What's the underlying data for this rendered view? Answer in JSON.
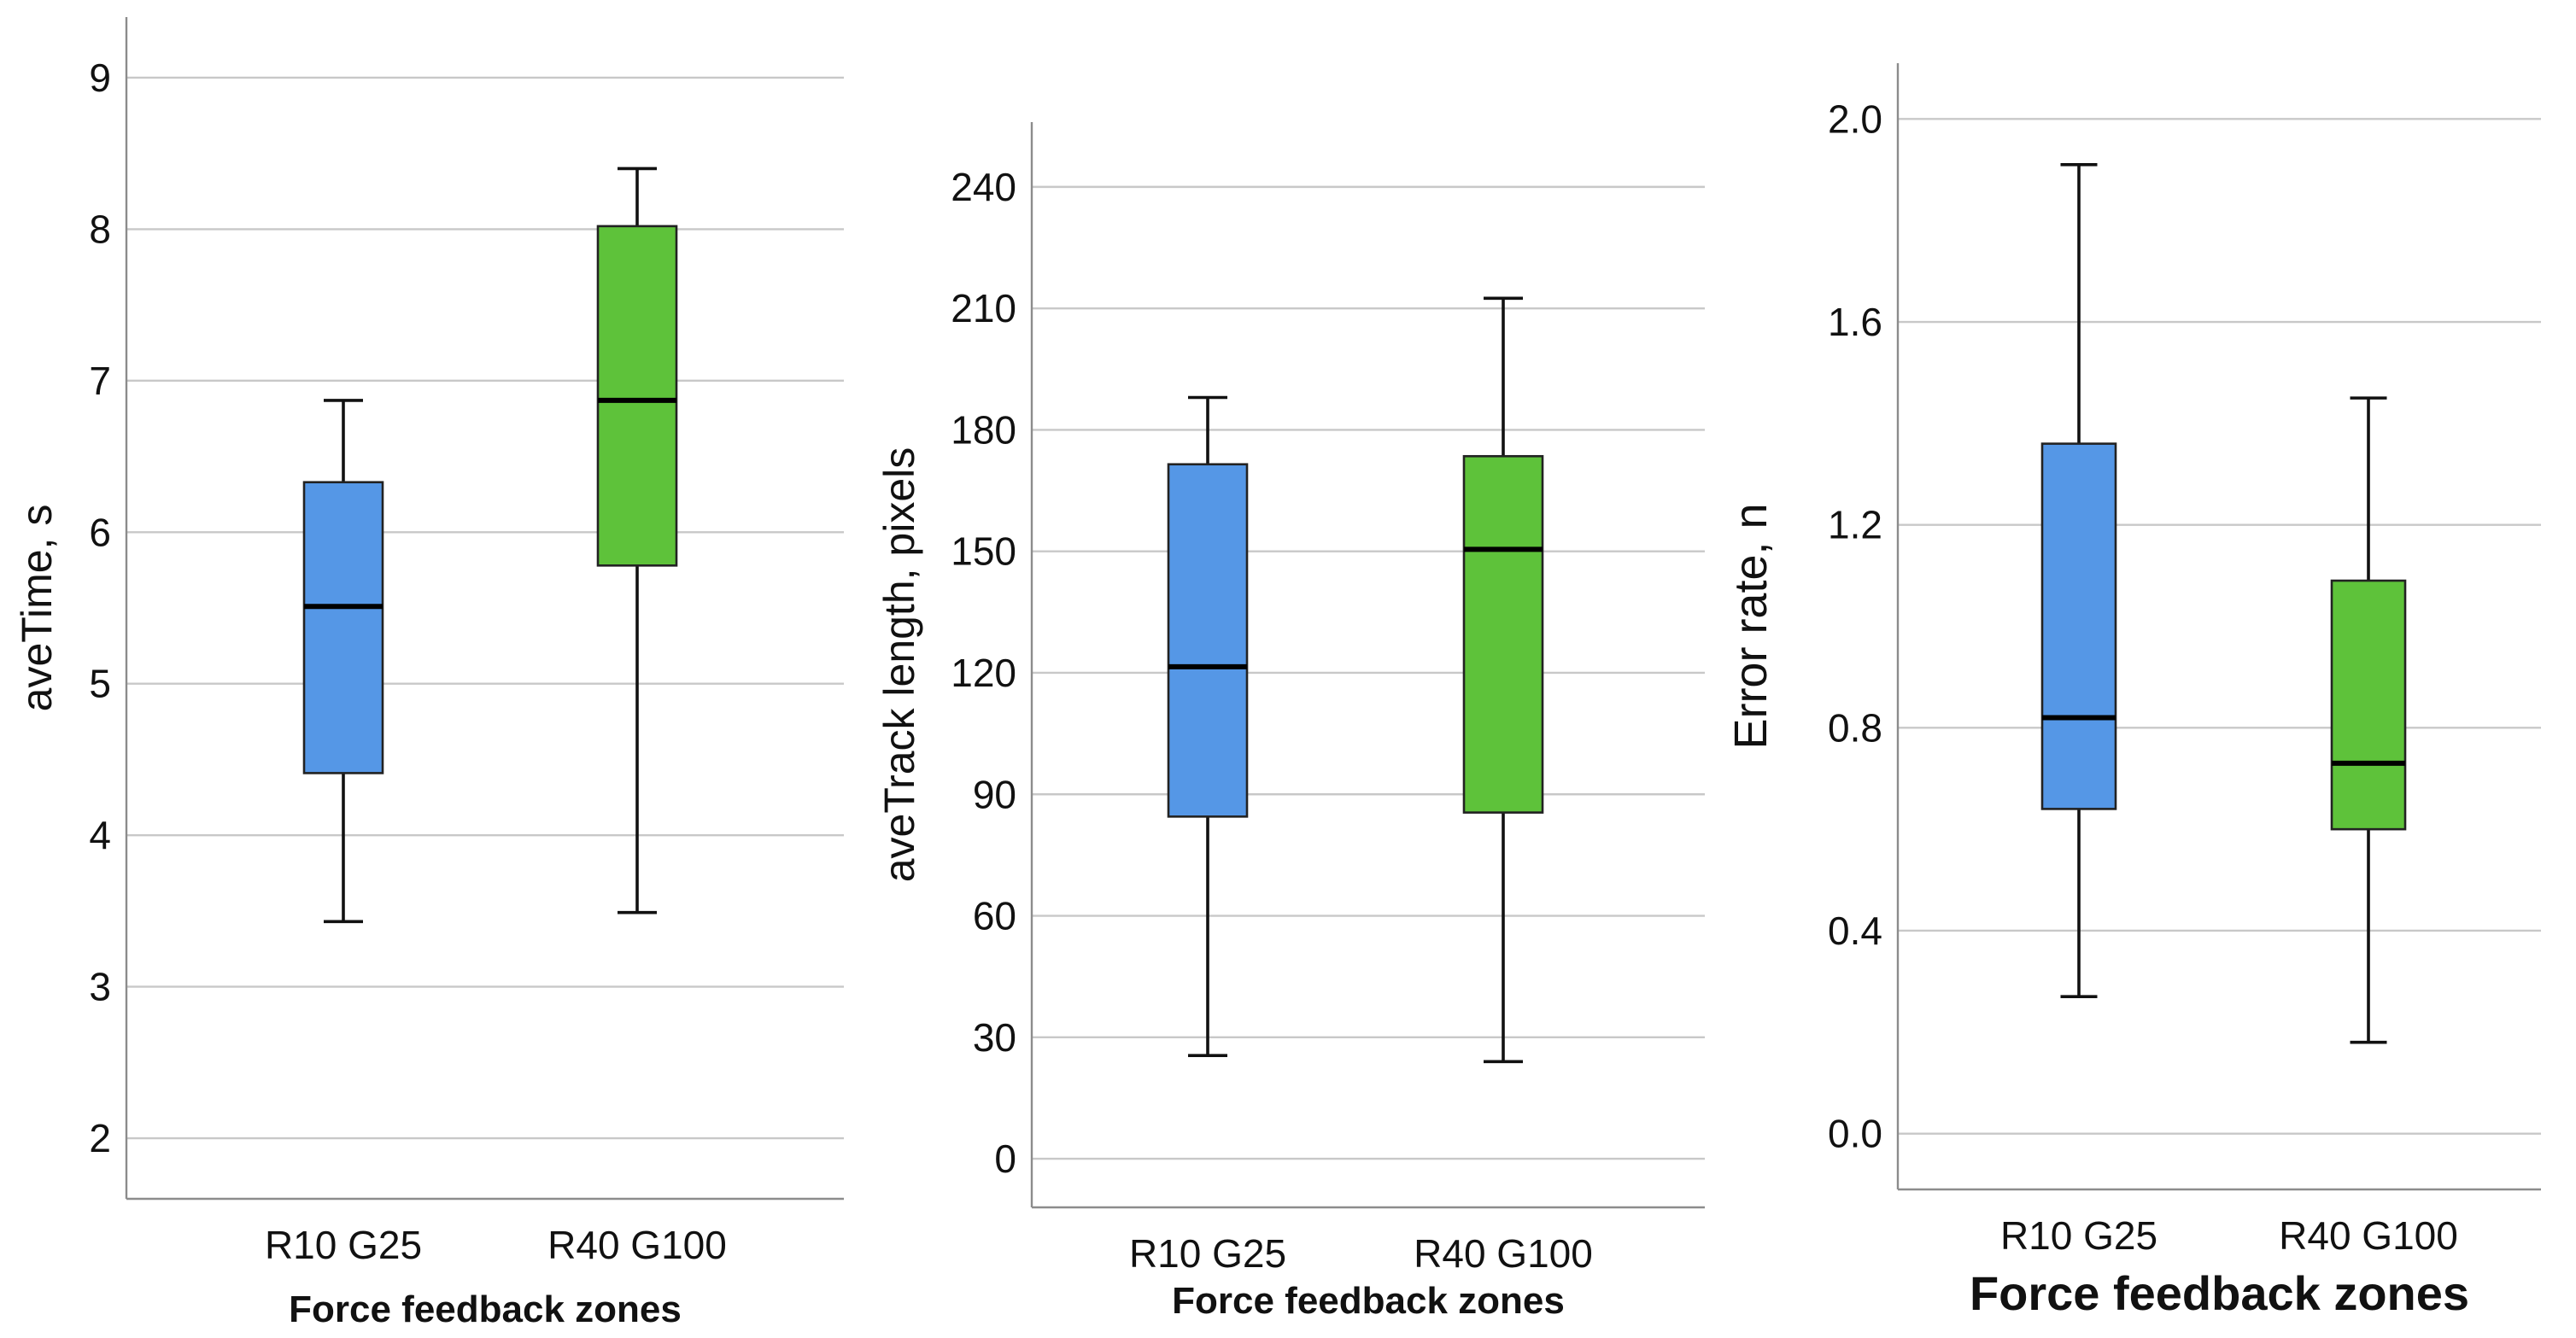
{
  "colors": {
    "blue": "#5597e6",
    "green": "#5ec23a"
  },
  "chart_data": [
    {
      "type": "boxplot",
      "title": "",
      "xlabel": "Force feedback zones",
      "ylabel": "aveTime, s",
      "ylim": [
        1.6,
        9.4
      ],
      "yticks": [
        2,
        3,
        4,
        5,
        6,
        7,
        8,
        9
      ],
      "tick_labels": [
        "2",
        "3",
        "4",
        "5",
        "6",
        "7",
        "8",
        "9"
      ],
      "categories": [
        "R10 G25",
        "R40 G100"
      ],
      "boxes": [
        {
          "category": "R10 G25",
          "min": 3.43,
          "q1": 4.41,
          "median": 5.51,
          "q3": 6.33,
          "max": 6.87,
          "color": "#5597e6"
        },
        {
          "category": "R40 G100",
          "min": 3.49,
          "q1": 5.78,
          "median": 6.87,
          "q3": 8.02,
          "max": 8.4,
          "color": "#5ec23a"
        }
      ]
    },
    {
      "type": "boxplot",
      "title": "",
      "xlabel": "Force feedback zones",
      "ylabel": "aveTrack length, pixels",
      "ylim": [
        -12,
        256
      ],
      "yticks": [
        0,
        30,
        60,
        90,
        120,
        150,
        180,
        210,
        240
      ],
      "tick_labels": [
        "0",
        "30",
        "60",
        "90",
        "120",
        "150",
        "180",
        "210",
        "240"
      ],
      "categories": [
        "R10 G25",
        "R40 G100"
      ],
      "boxes": [
        {
          "category": "R10 G25",
          "min": 25.5,
          "q1": 84.5,
          "median": 121.5,
          "q3": 171.5,
          "max": 188,
          "color": "#5597e6"
        },
        {
          "category": "R40 G100",
          "min": 24,
          "q1": 85.5,
          "median": 150.5,
          "q3": 173.5,
          "max": 212.5,
          "color": "#5ec23a"
        }
      ]
    },
    {
      "type": "boxplot",
      "title": "",
      "xlabel": "Force feedback zones",
      "ylabel": "Error rate, n",
      "ylim": [
        -0.11,
        2.11
      ],
      "yticks": [
        0.0,
        0.4,
        0.8,
        1.2,
        1.6,
        2.0
      ],
      "tick_labels": [
        "0.0",
        "0.4",
        "0.8",
        "1.2",
        "1.6",
        "2.0"
      ],
      "categories": [
        "R10 G25",
        "R40 G100"
      ],
      "boxes": [
        {
          "category": "R10 G25",
          "min": 0.27,
          "q1": 0.64,
          "median": 0.82,
          "q3": 1.36,
          "max": 1.91,
          "color": "#5597e6"
        },
        {
          "category": "R40 G100",
          "min": 0.18,
          "q1": 0.6,
          "median": 0.73,
          "q3": 1.09,
          "max": 1.45,
          "color": "#5ec23a"
        }
      ]
    }
  ]
}
